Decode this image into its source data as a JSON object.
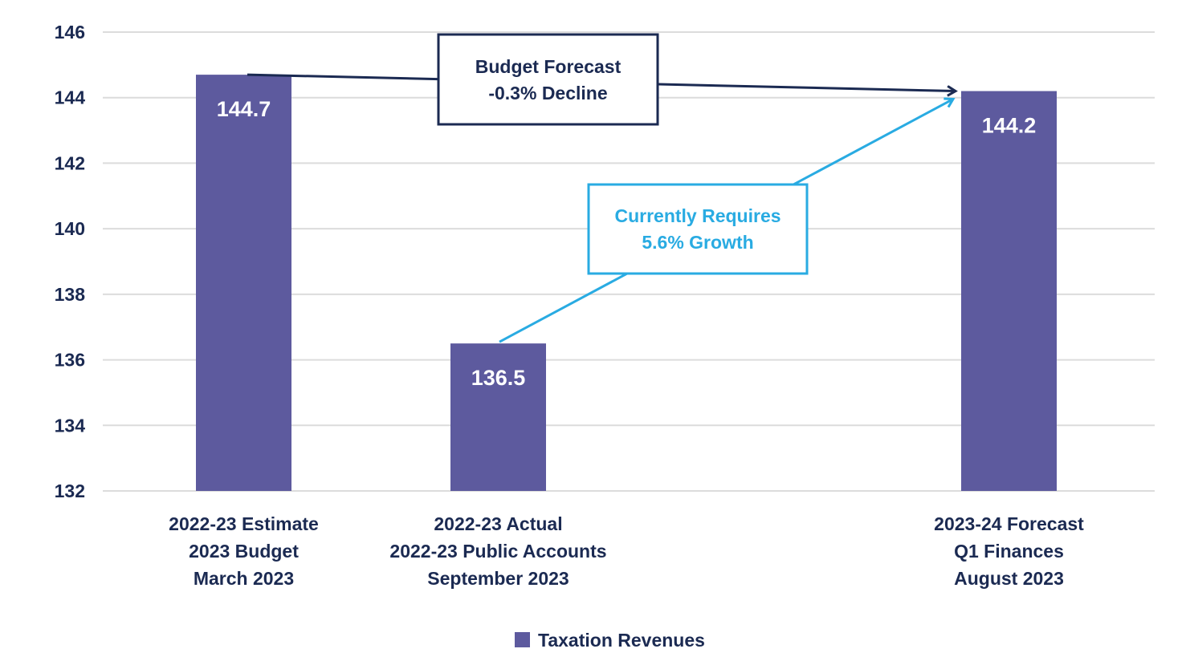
{
  "chart_data": {
    "type": "bar",
    "title": "",
    "xlabel": "",
    "ylabel": "",
    "ylim": [
      132,
      146
    ],
    "yticks": [
      132,
      134,
      136,
      138,
      140,
      142,
      144,
      146
    ],
    "grid": true,
    "categories": [
      [
        "2022-23 Estimate",
        "2023 Budget",
        "March 2023"
      ],
      [
        "2022-23 Actual",
        "2022-23 Public Accounts",
        "September 2023"
      ],
      [
        "2023-24 Forecast",
        "Q1 Finances",
        "August 2023"
      ]
    ],
    "series": [
      {
        "name": "Taxation Revenues",
        "color": "#5d5a9e",
        "values": [
          144.7,
          136.5,
          144.2
        ],
        "data_labels": [
          "144.7",
          "136.5",
          "144.2"
        ]
      }
    ],
    "legend": {
      "position": "bottom-center",
      "entries": [
        "Taxation Revenues"
      ]
    },
    "annotations": [
      {
        "lines": [
          "Budget Forecast",
          "-0.3% Decline"
        ],
        "color": "#1b2a52",
        "from_category": 0,
        "to_category": 2,
        "type": "arrow"
      },
      {
        "lines": [
          "Currently Requires",
          "5.6% Growth"
        ],
        "color": "#29abe2",
        "from_category": 1,
        "to_category": 2,
        "type": "arrow"
      }
    ]
  }
}
